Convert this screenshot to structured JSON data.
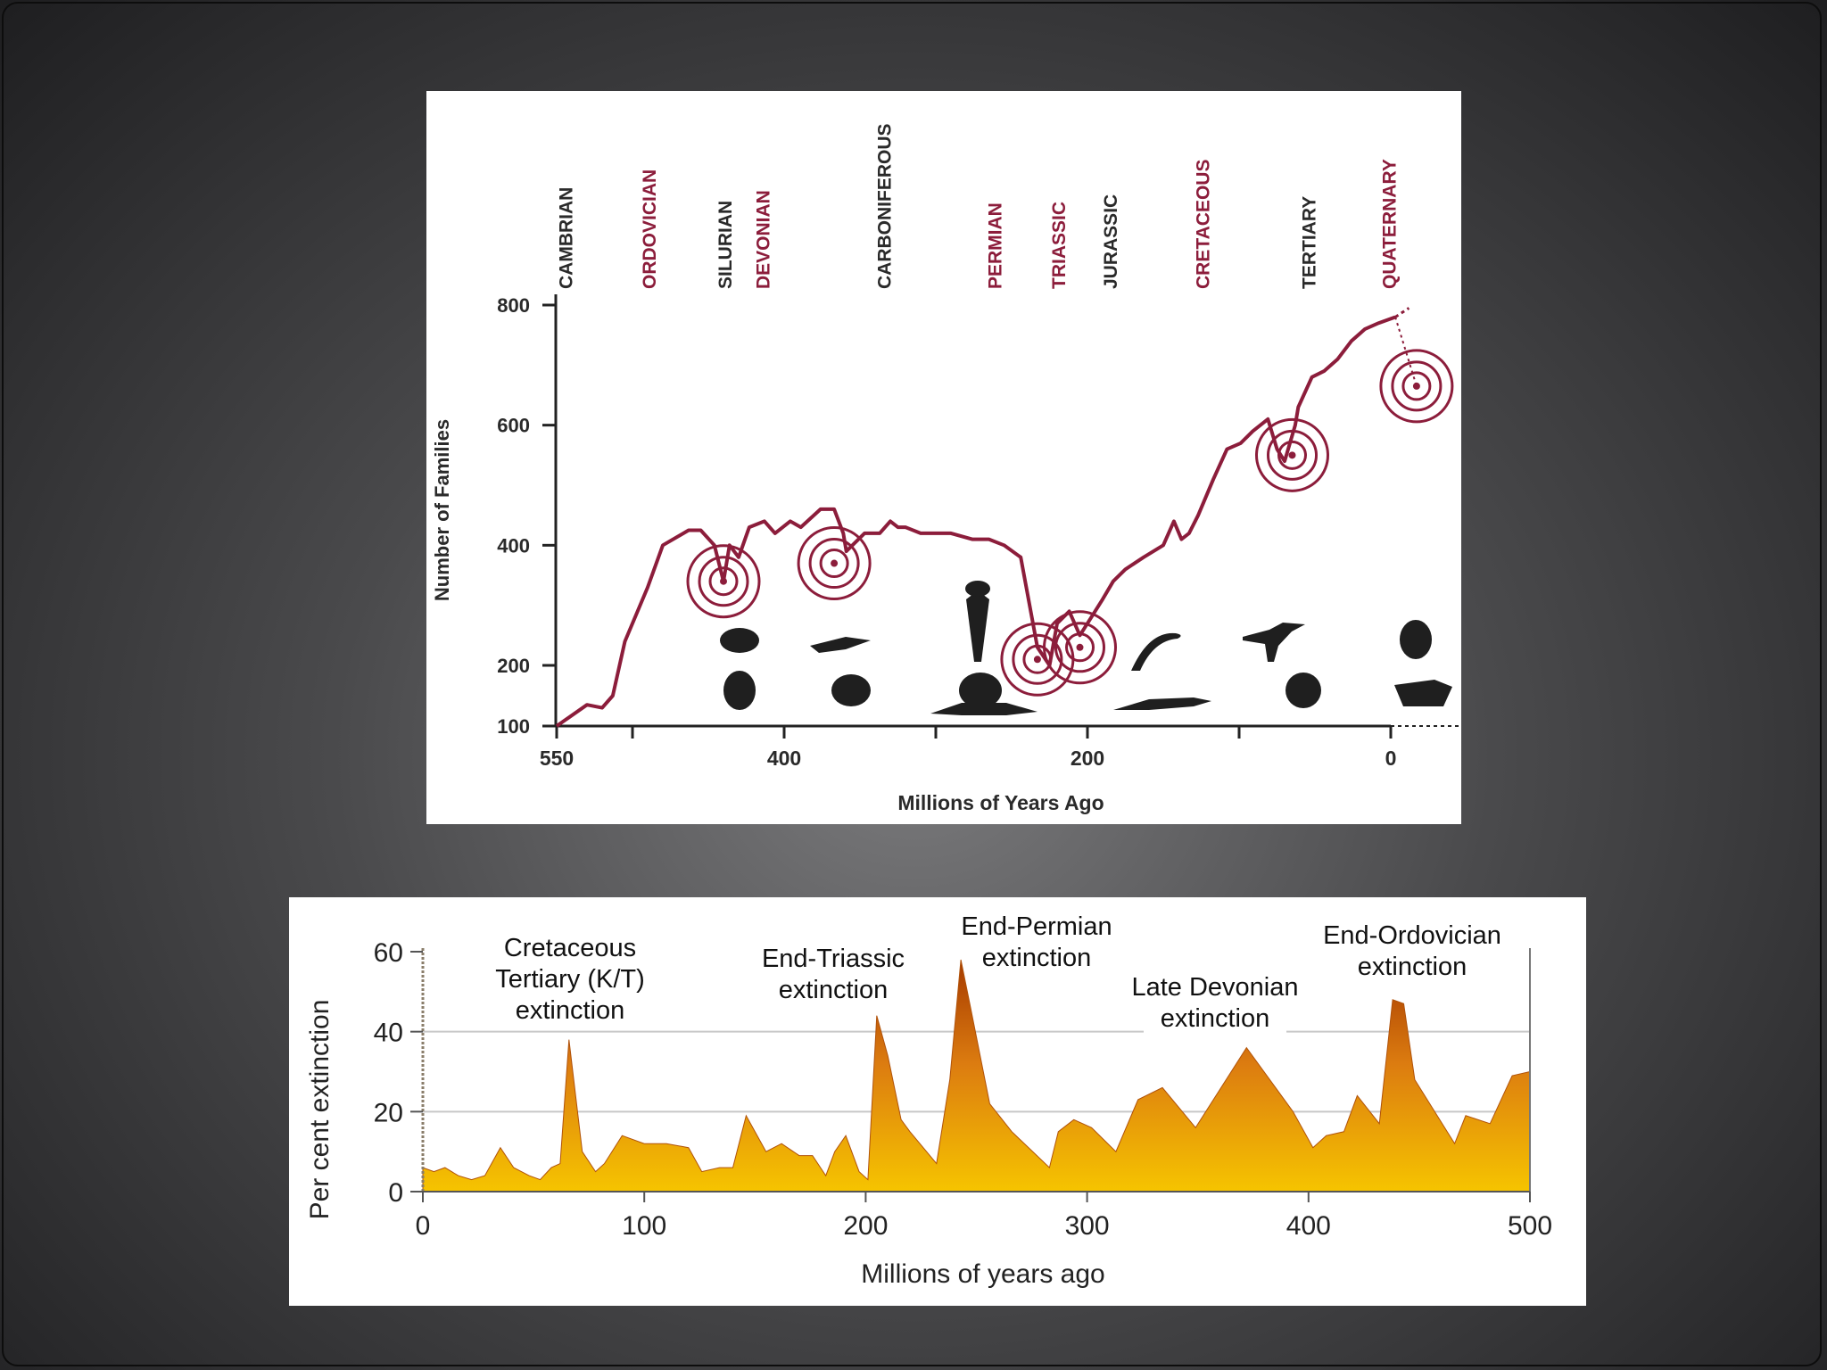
{
  "colors": {
    "line_dark_red": "#8c1d3b",
    "period_red": "#8c1d3b",
    "period_dark": "#2a2a2a",
    "area_top": "#a63a00",
    "area_mid": "#dc7c10",
    "area_bottom": "#f6c400",
    "grid": "#c8c8c8"
  },
  "chart_data": [
    {
      "type": "line",
      "xlabel": "Millions of Years Ago",
      "ylabel": "Number of Families",
      "xlim": [
        550,
        0
      ],
      "ylim": [
        100,
        800
      ],
      "x_tick_labels": [
        "550",
        "400",
        "200",
        "0"
      ],
      "x_ticks": [
        550,
        400,
        200,
        0
      ],
      "x_minor_ticks": [
        500,
        300,
        100
      ],
      "y_ticks": [
        100,
        200,
        400,
        600,
        800
      ],
      "y_tick_labels": [
        "100",
        "200",
        "400",
        "600",
        "800"
      ],
      "periods": [
        {
          "name": "CAMBRIAN",
          "x": 545,
          "color": "dark"
        },
        {
          "name": "ORDOVICIAN",
          "x": 490,
          "color": "red"
        },
        {
          "name": "SILURIAN",
          "x": 440,
          "color": "dark"
        },
        {
          "name": "DEVONIAN",
          "x": 415,
          "color": "red"
        },
        {
          "name": "CARBONIFEROUS",
          "x": 335,
          "color": "dark"
        },
        {
          "name": "PERMIAN",
          "x": 262,
          "color": "red"
        },
        {
          "name": "TRIASSIC",
          "x": 220,
          "color": "red"
        },
        {
          "name": "JURASSIC",
          "x": 186,
          "color": "dark"
        },
        {
          "name": "CRETACEOUS",
          "x": 125,
          "color": "red"
        },
        {
          "name": "TERTIARY",
          "x": 55,
          "color": "dark"
        },
        {
          "name": "QUATERNARY",
          "x": 2,
          "color": "red"
        }
      ],
      "series": [
        {
          "x": [
            550,
            530,
            520,
            513,
            505,
            490,
            480,
            463,
            455,
            446,
            440,
            436,
            430,
            423,
            413,
            406,
            396,
            389,
            376,
            367,
            361,
            359,
            347,
            337,
            330,
            325,
            320,
            310,
            290,
            276,
            265,
            255,
            244,
            233,
            225,
            220,
            212,
            205,
            200,
            190,
            183,
            175,
            163,
            150,
            143,
            138,
            133,
            127,
            117,
            108,
            99,
            91,
            81,
            75,
            70,
            63,
            61,
            52,
            44,
            35,
            26,
            17,
            8,
            -3
          ],
          "y": [
            100,
            135,
            130,
            150,
            240,
            330,
            400,
            425,
            425,
            400,
            340,
            400,
            380,
            430,
            440,
            420,
            440,
            430,
            460,
            460,
            420,
            390,
            420,
            420,
            440,
            430,
            430,
            420,
            420,
            410,
            410,
            400,
            380,
            230,
            200,
            270,
            290,
            250,
            270,
            310,
            340,
            360,
            380,
            400,
            440,
            410,
            420,
            450,
            510,
            560,
            570,
            590,
            610,
            560,
            540,
            600,
            630,
            680,
            690,
            710,
            740,
            760,
            770,
            780
          ]
        }
      ],
      "extinction_markers": [
        {
          "x": 440,
          "y": 340
        },
        {
          "x": 367,
          "y": 370
        },
        {
          "x": 233,
          "y": 210
        },
        {
          "x": 205,
          "y": 230
        },
        {
          "x": 65,
          "y": 550
        },
        {
          "x": -17,
          "y": 665
        }
      ]
    },
    {
      "type": "area",
      "xlabel": "Millions of years ago",
      "ylabel": "Per cent extinction",
      "xlim": [
        0,
        500
      ],
      "ylim": [
        0,
        60
      ],
      "x_ticks": [
        0,
        100,
        200,
        300,
        400,
        500
      ],
      "x_tick_labels": [
        "0",
        "100",
        "200",
        "300",
        "400",
        "500"
      ],
      "y_ticks": [
        0,
        20,
        40,
        60
      ],
      "y_tick_labels": [
        "0",
        "20",
        "40",
        "60"
      ],
      "grid": "horizontal",
      "x": [
        0,
        5,
        10,
        16,
        22,
        28,
        35,
        41,
        48,
        53,
        58,
        62,
        66,
        72,
        78,
        82,
        90,
        100,
        110,
        120,
        126,
        134,
        140,
        146,
        155,
        162,
        170,
        176,
        182,
        186,
        191,
        197,
        201,
        205,
        210,
        216,
        220,
        232,
        238,
        243,
        247,
        256,
        266,
        283,
        287,
        294,
        302,
        313,
        323,
        334,
        349,
        372,
        393,
        402,
        408,
        416,
        422,
        432,
        438,
        443,
        448,
        466,
        471,
        482,
        492,
        500
      ],
      "y": [
        6,
        5,
        6,
        4,
        3,
        4,
        11,
        6,
        4,
        3,
        6,
        7,
        38,
        10,
        5,
        7,
        14,
        12,
        12,
        11,
        5,
        6,
        6,
        19,
        10,
        12,
        9,
        9,
        4,
        10,
        14,
        5,
        3,
        44,
        34,
        18,
        15,
        7,
        28,
        58,
        47,
        22,
        15,
        6,
        15,
        18,
        16,
        10,
        23,
        26,
        16,
        36,
        20,
        11,
        14,
        15,
        24,
        17,
        48,
        47,
        28,
        12,
        19,
        17,
        29,
        30
      ],
      "annotations": [
        {
          "lines": [
            "Cretaceous",
            "Tertiary (K/T)",
            "extinction"
          ]
        },
        {
          "lines": [
            "End-Triassic",
            "extinction"
          ]
        },
        {
          "lines": [
            "End-Permian",
            "extinction"
          ]
        },
        {
          "lines": [
            "Late Devonian",
            "extinction"
          ]
        },
        {
          "lines": [
            "End-Ordovician",
            "extinction"
          ]
        }
      ]
    }
  ]
}
